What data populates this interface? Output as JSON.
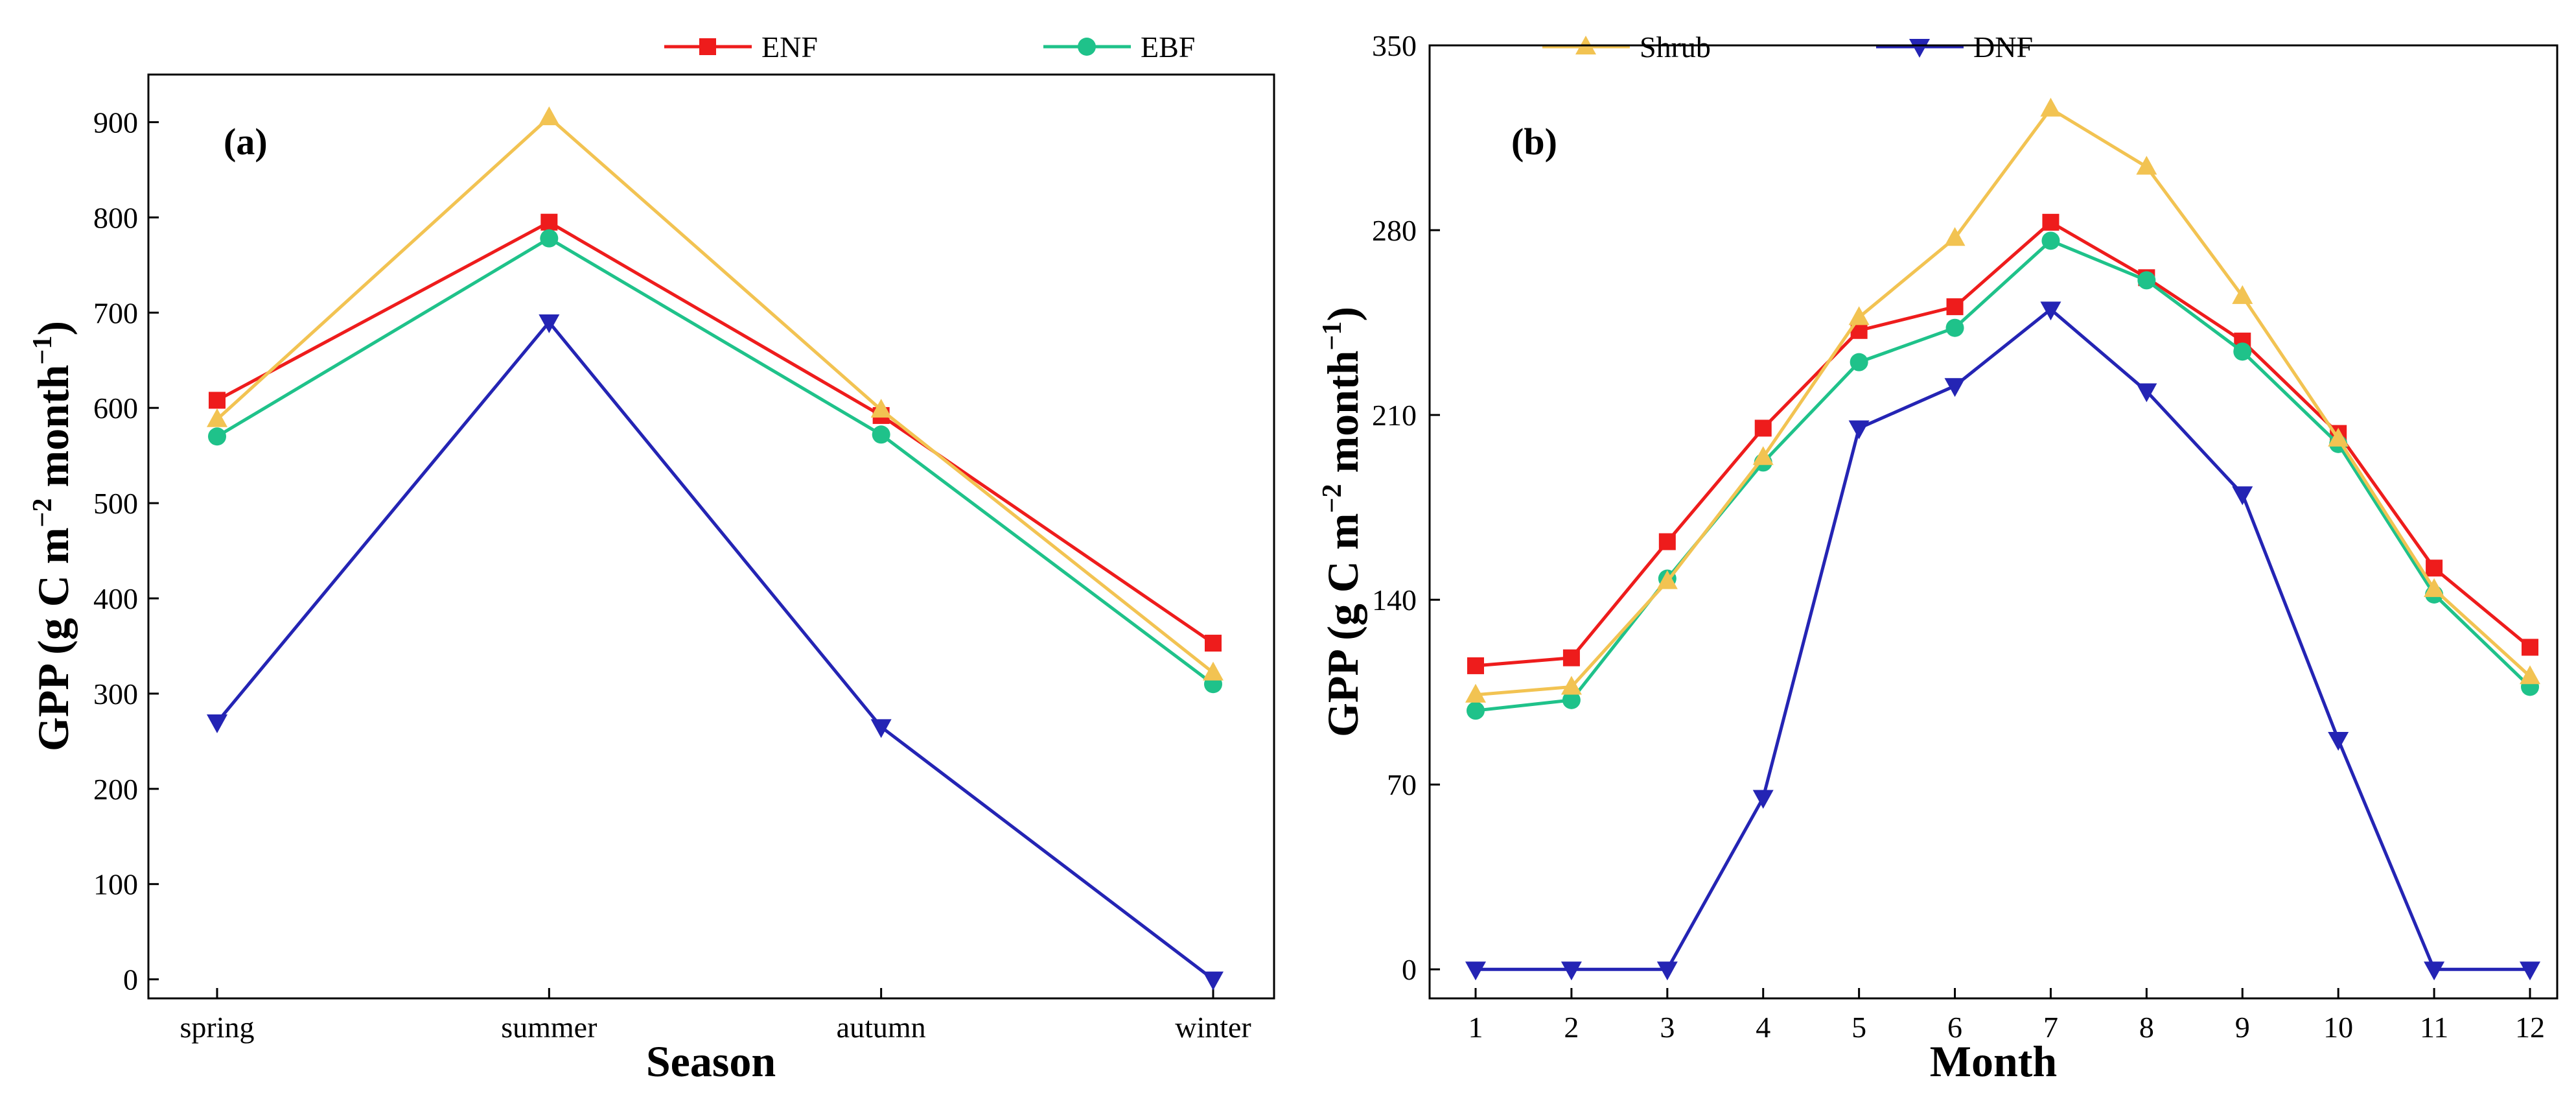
{
  "legend": [
    {
      "name": "ENF",
      "color": "#ee1c1c",
      "marker": "square"
    },
    {
      "name": "EBF",
      "color": "#1fc28a",
      "marker": "circle"
    },
    {
      "name": "Shrub",
      "color": "#f2c352",
      "marker": "triangle-up"
    },
    {
      "name": "DNF",
      "color": "#2424b4",
      "marker": "triangle-down"
    }
  ],
  "chart_data": [
    {
      "type": "line",
      "panel_label": "(a)",
      "xlabel": "Season",
      "ylabel_main": "GPP (g C m",
      "ylabel_sup1": "−2",
      "ylabel_mid": " month",
      "ylabel_sup2": "−1",
      "ylabel_end": ")",
      "categories": [
        "spring",
        "summer",
        "autumn",
        "winter"
      ],
      "ylim": [
        -20,
        950
      ],
      "yticks": [
        0,
        100,
        200,
        300,
        400,
        500,
        600,
        700,
        800,
        900
      ],
      "series": [
        {
          "name": "ENF",
          "values": [
            608,
            795,
            592,
            353
          ]
        },
        {
          "name": "EBF",
          "values": [
            570,
            778,
            572,
            310
          ]
        },
        {
          "name": "Shrub",
          "values": [
            588,
            905,
            598,
            322
          ]
        },
        {
          "name": "DNF",
          "values": [
            270,
            690,
            265,
            0
          ]
        }
      ]
    },
    {
      "type": "line",
      "panel_label": "(b)",
      "xlabel": "Month",
      "ylabel_main": "GPP (g C m",
      "ylabel_sup1": "−2",
      "ylabel_mid": " month",
      "ylabel_sup2": "−1",
      "ylabel_end": ")",
      "categories": [
        "1",
        "2",
        "3",
        "4",
        "5",
        "6",
        "7",
        "8",
        "9",
        "10",
        "11",
        "12"
      ],
      "ylim": [
        -11,
        350
      ],
      "yticks": [
        0,
        70,
        140,
        210,
        280,
        350
      ],
      "series": [
        {
          "name": "ENF",
          "values": [
            115,
            118,
            162,
            205,
            242,
            251,
            283,
            262,
            238,
            203,
            152,
            122
          ]
        },
        {
          "name": "EBF",
          "values": [
            98,
            102,
            148,
            192,
            230,
            243,
            276,
            261,
            234,
            199,
            142,
            107
          ]
        },
        {
          "name": "Shrub",
          "values": [
            104,
            107,
            147,
            194,
            247,
            277,
            326,
            304,
            255,
            201,
            144,
            111
          ]
        },
        {
          "name": "DNF",
          "values": [
            0,
            0,
            0,
            65,
            205,
            221,
            250,
            219,
            180,
            87,
            0,
            0
          ]
        }
      ]
    }
  ]
}
